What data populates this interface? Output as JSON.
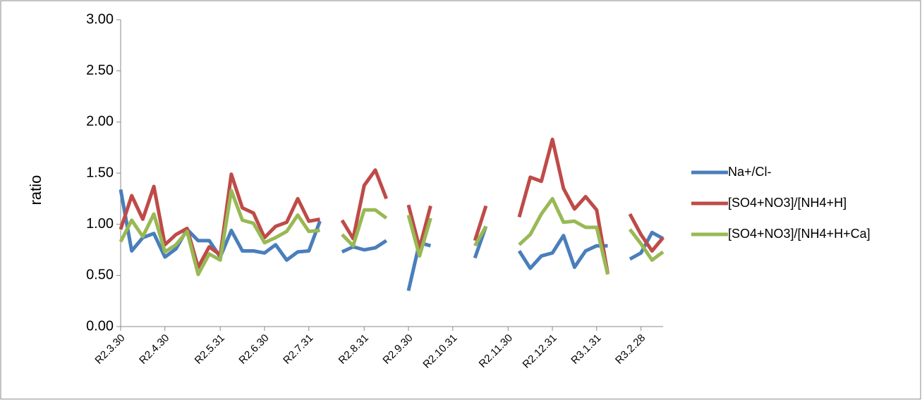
{
  "chart_data": {
    "type": "line",
    "y_label": "ratio",
    "categories": [
      "R2.3.30",
      null,
      null,
      null,
      "R2.4.30",
      null,
      null,
      null,
      null,
      "R2.5.31",
      null,
      null,
      null,
      "R2.6.30",
      null,
      null,
      null,
      "R2.7.31",
      null,
      null,
      null,
      null,
      "R2.8.31",
      null,
      null,
      null,
      "R2.9.30",
      null,
      null,
      null,
      "R2.10.31",
      null,
      null,
      null,
      null,
      "R2.11.30",
      null,
      null,
      null,
      "R2.12.31",
      null,
      null,
      null,
      "R3.1.31",
      null,
      null,
      null,
      "R3.2.28",
      null,
      null
    ],
    "series": [
      {
        "name": "Na+/Cl-",
        "color": "#4a7ebb",
        "values": [
          1.34,
          0.74,
          0.87,
          0.91,
          0.68,
          0.76,
          0.95,
          0.84,
          0.84,
          0.68,
          0.94,
          0.74,
          0.74,
          0.72,
          0.8,
          0.65,
          0.73,
          0.74,
          1.03,
          null,
          0.73,
          0.78,
          0.75,
          0.77,
          0.84,
          null,
          0.35,
          0.82,
          0.79,
          null,
          null,
          null,
          0.67,
          0.98,
          null,
          null,
          0.74,
          0.57,
          0.69,
          0.72,
          0.89,
          0.58,
          0.74,
          0.79,
          0.79,
          null,
          0.66,
          0.72,
          0.92,
          0.86
        ]
      },
      {
        "name": "[SO4+NO3]/[NH4+H]",
        "color": "#be4b48",
        "values": [
          0.95,
          1.28,
          1.05,
          1.37,
          0.8,
          0.9,
          0.96,
          0.58,
          0.78,
          0.7,
          1.49,
          1.16,
          1.11,
          0.87,
          0.98,
          1.02,
          1.25,
          1.03,
          1.05,
          null,
          1.04,
          0.86,
          1.38,
          1.53,
          1.25,
          null,
          1.19,
          0.77,
          1.18,
          null,
          null,
          null,
          0.84,
          1.18,
          null,
          null,
          1.07,
          1.46,
          1.42,
          1.83,
          1.35,
          1.15,
          1.27,
          1.14,
          0.52,
          null,
          1.1,
          0.9,
          0.74,
          0.87
        ]
      },
      {
        "name": "[SO4+NO3]/[NH4+H+Ca]",
        "color": "#98b954",
        "values": [
          0.83,
          1.04,
          0.88,
          1.1,
          0.73,
          0.8,
          0.93,
          0.51,
          0.71,
          0.65,
          1.33,
          1.04,
          1.01,
          0.82,
          0.87,
          0.93,
          1.09,
          0.93,
          0.94,
          null,
          0.9,
          0.79,
          1.14,
          1.14,
          1.06,
          null,
          1.09,
          0.69,
          1.06,
          null,
          null,
          null,
          0.79,
          0.98,
          null,
          null,
          0.8,
          0.9,
          1.1,
          1.25,
          1.02,
          1.03,
          0.97,
          0.97,
          0.51,
          null,
          0.95,
          0.81,
          0.65,
          0.73
        ]
      }
    ],
    "ylim": [
      0,
      3
    ],
    "yticks": [
      {
        "value": 0,
        "label": "0.00"
      },
      {
        "value": 0.5,
        "label": "0.50"
      },
      {
        "value": 1,
        "label": "1.00"
      },
      {
        "value": 1.5,
        "label": "1.50"
      },
      {
        "value": 2,
        "label": "2.00"
      },
      {
        "value": 2.5,
        "label": "2.50"
      },
      {
        "value": 3,
        "label": "3.00"
      }
    ],
    "legend": "right",
    "grid": false
  }
}
